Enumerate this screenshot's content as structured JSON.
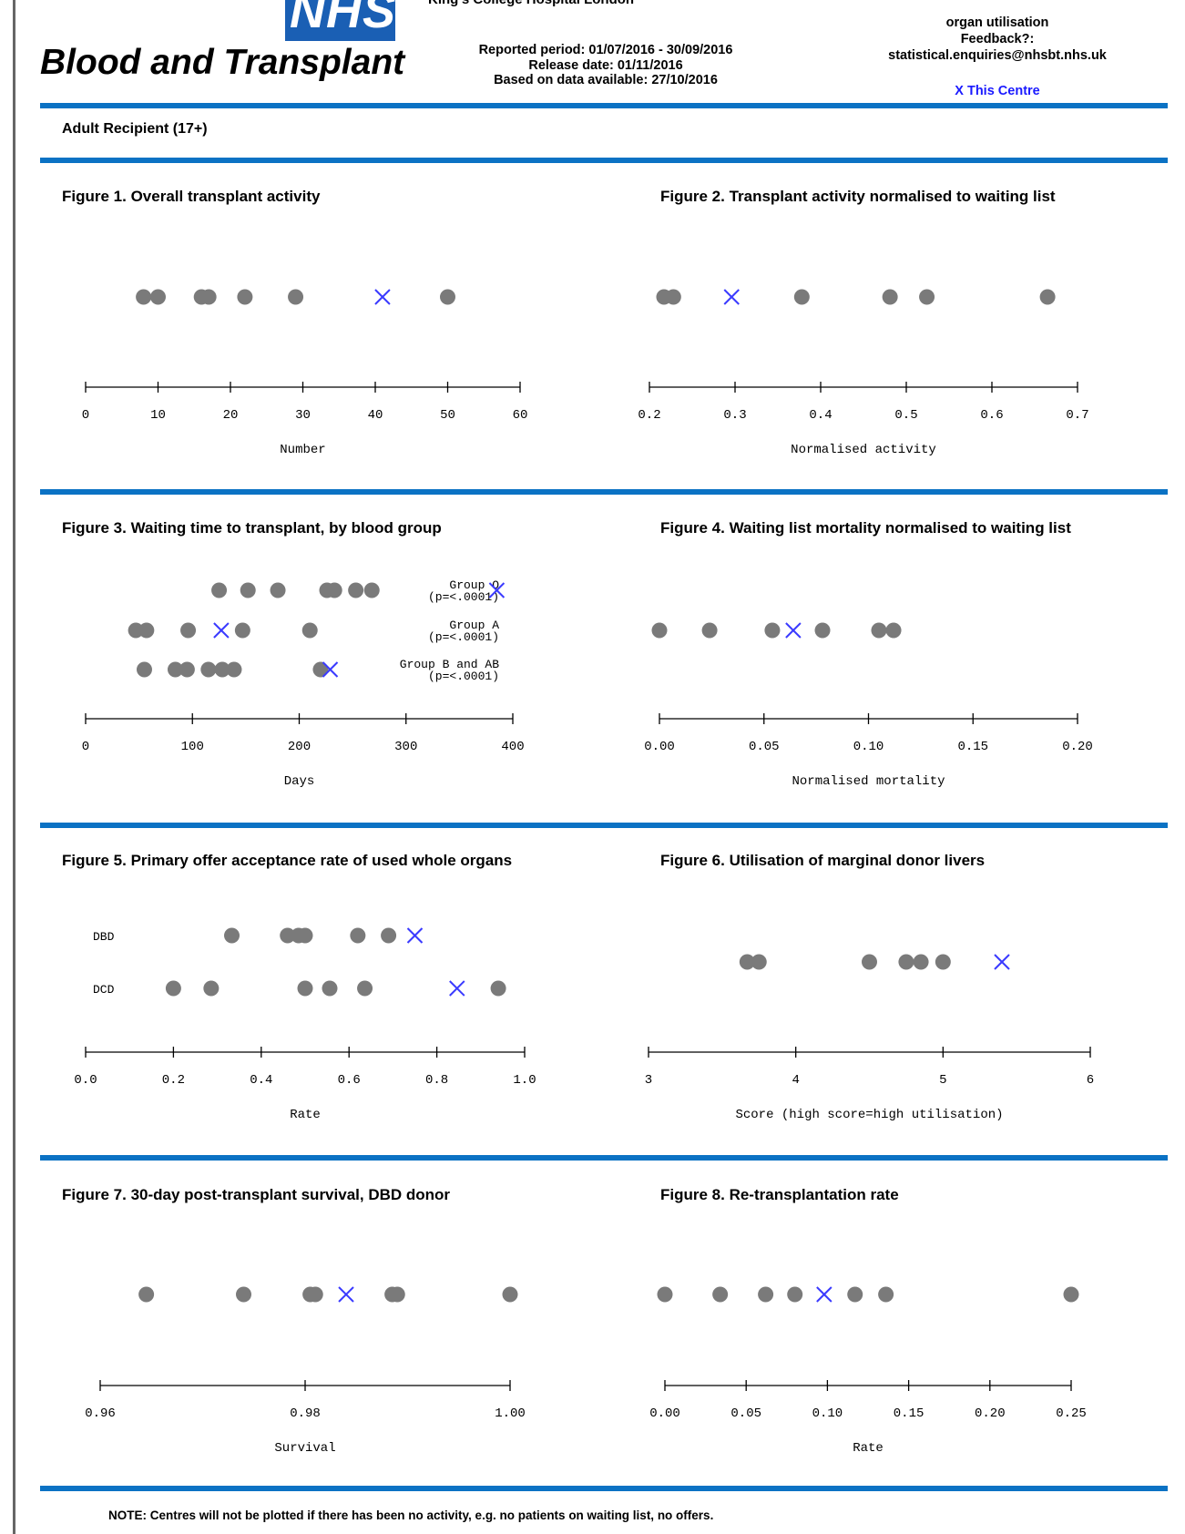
{
  "header": {
    "logo_text": "NHS",
    "org_name": "Blood and Transplant",
    "centre_name_cut": "King's College Hospital London",
    "reported_period": "Reported period: 01/07/2016 - 30/09/2016",
    "release_date": "Release date: 01/11/2016",
    "data_available": "Based on data available: 27/10/2016",
    "right_line1": "organ utilisation",
    "right_line2": "Feedback?:",
    "right_line3": "statistical.enquiries@nhsbt.nhs.uk",
    "legend_this_centre": "X  This Centre"
  },
  "section_label": "Adult Recipient (17+)",
  "note": "NOTE: Centres will not be plotted if there has been no activity, e.g. no patients on waiting list, no offers.",
  "colors": {
    "rule": "#0b72c4",
    "dot": "#7a7a7a",
    "this_centre": "#3a3aff"
  },
  "chart_data": [
    {
      "type": "scatter",
      "title": "Figure 1. Overall transplant activity",
      "xlabel": "Number",
      "xlim": [
        0,
        60
      ],
      "ticks": [
        0,
        10,
        20,
        30,
        40,
        50,
        60
      ],
      "tick_labels": [
        "0",
        "10",
        "20",
        "30",
        "40",
        "50",
        "60"
      ],
      "rows": [
        {
          "label": "",
          "points": [
            8,
            10,
            16,
            17,
            22,
            29,
            50
          ],
          "centre": 41
        }
      ]
    },
    {
      "type": "scatter",
      "title": "Figure 2. Transplant activity normalised to waiting list",
      "xlabel": "Normalised activity",
      "xlim": [
        0.2,
        0.7
      ],
      "ticks": [
        0.2,
        0.3,
        0.4,
        0.5,
        0.6,
        0.7
      ],
      "tick_labels": [
        "0.2",
        "0.3",
        "0.4",
        "0.5",
        "0.6",
        "0.7"
      ],
      "rows": [
        {
          "label": "",
          "points": [
            0.217,
            0.228,
            0.378,
            0.481,
            0.524,
            0.665
          ],
          "centre": 0.296
        }
      ]
    },
    {
      "type": "scatter",
      "title": "Figure 3. Waiting time to transplant, by blood group",
      "xlabel": "Days",
      "xlim": [
        0,
        400
      ],
      "ticks": [
        0,
        100,
        200,
        300,
        400
      ],
      "tick_labels": [
        "0",
        "100",
        "200",
        "300",
        "400"
      ],
      "rows": [
        {
          "label": "Group O",
          "sub": "(p=<.0001)",
          "points": [
            125,
            152,
            180,
            226,
            233,
            253,
            268
          ],
          "centre": 385
        },
        {
          "label": "Group A",
          "sub": "(p=<.0001)",
          "points": [
            47,
            57,
            96,
            147,
            210
          ],
          "centre": 127
        },
        {
          "label": "Group B and AB",
          "sub": "(p=<.0001)",
          "points": [
            55,
            84,
            95,
            115,
            128,
            139,
            220
          ],
          "centre": 229
        }
      ]
    },
    {
      "type": "scatter",
      "title": "Figure 4. Waiting list mortality normalised to waiting list",
      "xlabel": "Normalised mortality",
      "xlim": [
        0,
        0.2
      ],
      "ticks": [
        0,
        0.05,
        0.1,
        0.15,
        0.2
      ],
      "tick_labels": [
        "0.00",
        "0.05",
        "0.10",
        "0.15",
        "0.20"
      ],
      "rows": [
        {
          "label": "",
          "points": [
            0.0,
            0.024,
            0.054,
            0.078,
            0.105,
            0.112
          ],
          "centre": 0.064
        }
      ]
    },
    {
      "type": "scatter",
      "title": "Figure 5. Primary offer acceptance rate of used whole organs",
      "xlabel": "Rate",
      "xlim": [
        0,
        1
      ],
      "ticks": [
        0,
        0.2,
        0.4,
        0.6,
        0.8,
        1.0
      ],
      "tick_labels": [
        "0.0",
        "0.2",
        "0.4",
        "0.6",
        "0.8",
        "1.0"
      ],
      "rows": [
        {
          "label": "DBD",
          "points": [
            0.333,
            0.46,
            0.485,
            0.5,
            0.62,
            0.69
          ],
          "centre": 0.75
        },
        {
          "label": "DCD",
          "points": [
            0.2,
            0.286,
            0.5,
            0.556,
            0.636,
            0.94
          ],
          "centre": 0.846
        }
      ]
    },
    {
      "type": "scatter",
      "title": "Figure 6. Utilisation of marginal donor livers",
      "xlabel": "Score (high score=high utilisation)",
      "xlim": [
        3,
        6
      ],
      "ticks": [
        3,
        4,
        5,
        6
      ],
      "tick_labels": [
        "3",
        "4",
        "5",
        "6"
      ],
      "rows": [
        {
          "label": "",
          "points": [
            3.67,
            3.75,
            4.5,
            4.75,
            4.85,
            5.0
          ],
          "centre": 5.4
        }
      ]
    },
    {
      "type": "scatter",
      "title": "Figure 7. 30-day post-transplant survival, DBD donor",
      "xlabel": "Survival",
      "xlim": [
        0.96,
        1.0
      ],
      "ticks": [
        0.96,
        0.98,
        1.0
      ],
      "tick_labels": [
        "0.96",
        "0.98",
        "1.00"
      ],
      "rows": [
        {
          "label": "",
          "points": [
            0.9645,
            0.974,
            0.9805,
            0.981,
            0.9885,
            0.989,
            1.0
          ],
          "centre": 0.984
        }
      ]
    },
    {
      "type": "scatter",
      "title": "Figure 8. Re-transplantation rate",
      "xlabel": "Rate",
      "xlim": [
        0,
        0.25
      ],
      "ticks": [
        0,
        0.05,
        0.1,
        0.15,
        0.2,
        0.25
      ],
      "tick_labels": [
        "0.00",
        "0.05",
        "0.10",
        "0.15",
        "0.20",
        "0.25"
      ],
      "rows": [
        {
          "label": "",
          "points": [
            0.0,
            0.034,
            0.062,
            0.08,
            0.117,
            0.136,
            0.25
          ],
          "centre": 0.098
        }
      ]
    }
  ]
}
